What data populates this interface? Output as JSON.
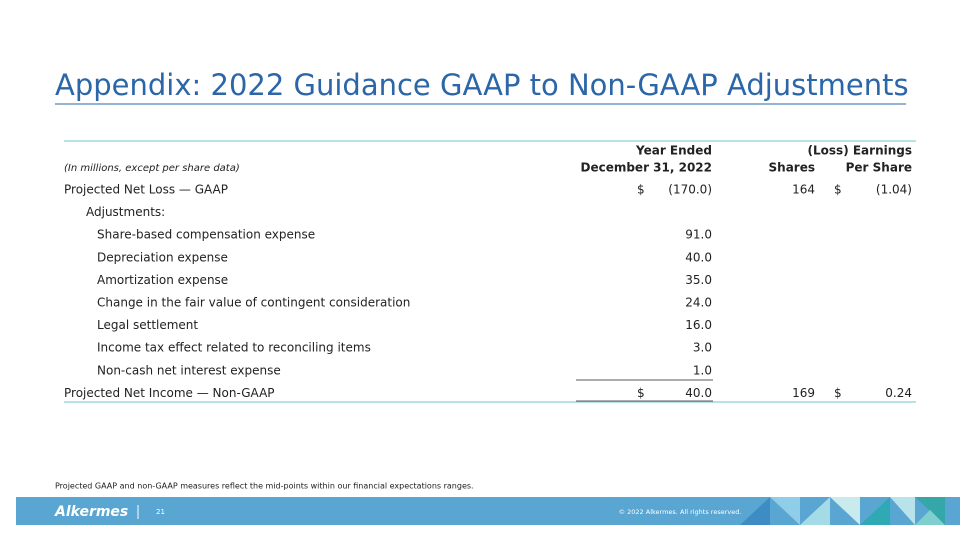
{
  "header": {
    "title": "Appendix: 2022 Guidance GAAP to Non-GAAP Adjustments"
  },
  "table": {
    "unit_note": "(In millions, except per share data)",
    "columns": [
      [
        "Year Ended",
        "December 31, 2022"
      ],
      [
        "Shares"
      ],
      [
        "(Loss) Earnings",
        "Per Share"
      ]
    ],
    "gaap": {
      "label": "Projected Net Loss — GAAP",
      "currency": "$",
      "amount": "(170.0)",
      "shares": "164",
      "eps_currency": "$",
      "eps": "(1.04)"
    },
    "adjustments": {
      "label": "Adjustments:",
      "items": [
        {
          "label": "Share-based compensation expense",
          "amount": "91.0"
        },
        {
          "label": "Depreciation expense",
          "amount": "40.0"
        },
        {
          "label": "Amortization expense",
          "amount": "35.0"
        },
        {
          "label": "Change in the fair value of contingent consideration",
          "amount": "24.0"
        },
        {
          "label": "Legal settlement",
          "amount": "16.0"
        },
        {
          "label": "Income tax effect related to reconciling items",
          "amount": "3.0"
        },
        {
          "label": "Non-cash net interest expense",
          "amount": "1.0"
        }
      ]
    },
    "non_gaap": {
      "label": "Projected Net Income — Non-GAAP",
      "currency": "$",
      "amount": "40.0",
      "shares": "169",
      "eps_currency": "$",
      "eps": "0.24"
    }
  },
  "footer": {
    "note": "Projected GAAP and non-GAAP measures reflect the mid-points within our financial expectations ranges.",
    "logo": "Alkermes",
    "page": "21",
    "copyright": "© 2022 Alkermes. All rights reserved."
  }
}
